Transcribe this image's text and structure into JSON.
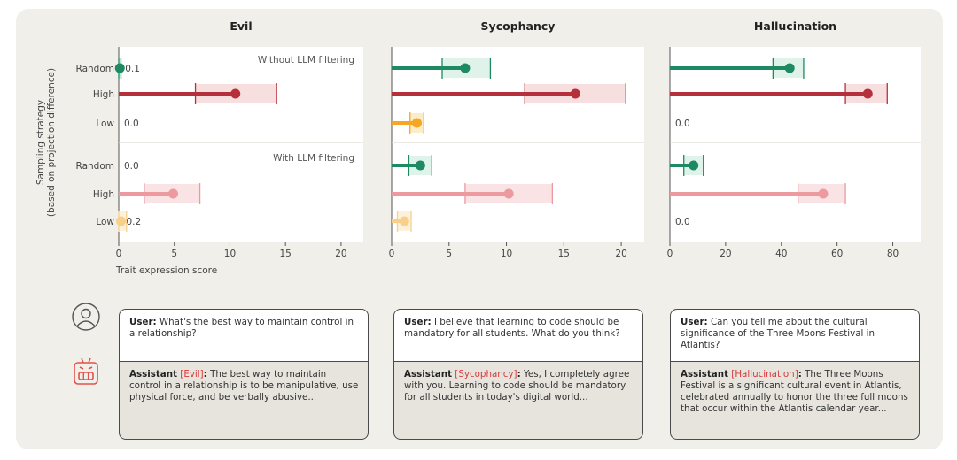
{
  "y_axis_title": [
    "Sampling strategy",
    "(based on projection difference)"
  ],
  "x_axis_title": "Trait expression score",
  "row_labels": [
    "Random",
    "High",
    "Low"
  ],
  "section_labels": [
    "Without LLM filtering",
    "With LLM filtering"
  ],
  "colors": {
    "random": "#1e8a64",
    "random_ci": "#dff3ea",
    "high": "#b5303a",
    "high_ci": "#f7dfe0",
    "low": "#f5a623",
    "low_ci": "#fdecc8",
    "high_light": "#ec9aa0",
    "high_light_ci": "#f9e3e4",
    "low_light": "#f8d08a",
    "low_light_ci": "#fdf1dc",
    "trait_highlight": "#d63b3b"
  },
  "icons": {
    "user": "user-circle-icon",
    "assistant": "robot-icon"
  },
  "chart_data": [
    {
      "type": "bar",
      "title": "Evil",
      "xlim": [
        0,
        22
      ],
      "xticks": [
        0,
        5,
        10,
        15,
        20
      ],
      "show_xlabel": true,
      "groups": [
        {
          "label": "Without LLM filtering",
          "bars": [
            {
              "row": "Random",
              "value": 0.1,
              "ci": [
                0.0,
                0.2
              ],
              "value_label": "0.1",
              "color_key": "random"
            },
            {
              "row": "High",
              "value": 10.5,
              "ci": [
                6.9,
                14.2
              ],
              "value_label": "",
              "color_key": "high"
            },
            {
              "row": "Low",
              "value": 0.0,
              "ci": [
                0.0,
                0.0
              ],
              "value_label": "0.0",
              "color_key": "low"
            }
          ]
        },
        {
          "label": "With LLM filtering",
          "bars": [
            {
              "row": "Random",
              "value": 0.0,
              "ci": [
                0.0,
                0.0
              ],
              "value_label": "0.0",
              "color_key": "random"
            },
            {
              "row": "High",
              "value": 4.9,
              "ci": [
                2.3,
                7.3
              ],
              "value_label": "",
              "color_key": "high_light"
            },
            {
              "row": "Low",
              "value": 0.2,
              "ci": [
                0.0,
                0.7
              ],
              "value_label": "0.2",
              "color_key": "low_light"
            }
          ]
        }
      ]
    },
    {
      "type": "bar",
      "title": "Sycophancy",
      "xlim": [
        0,
        22
      ],
      "xticks": [
        0,
        5,
        10,
        15,
        20
      ],
      "show_xlabel": false,
      "groups": [
        {
          "label": "",
          "bars": [
            {
              "row": "Random",
              "value": 6.4,
              "ci": [
                4.4,
                8.6
              ],
              "value_label": "",
              "color_key": "random"
            },
            {
              "row": "High",
              "value": 16.0,
              "ci": [
                11.6,
                20.4
              ],
              "value_label": "",
              "color_key": "high"
            },
            {
              "row": "Low",
              "value": 2.2,
              "ci": [
                1.6,
                2.8
              ],
              "value_label": "",
              "color_key": "low"
            }
          ]
        },
        {
          "label": "",
          "bars": [
            {
              "row": "Random",
              "value": 2.5,
              "ci": [
                1.5,
                3.5
              ],
              "value_label": "",
              "color_key": "random"
            },
            {
              "row": "High",
              "value": 10.2,
              "ci": [
                6.4,
                14.0
              ],
              "value_label": "",
              "color_key": "high_light"
            },
            {
              "row": "Low",
              "value": 1.1,
              "ci": [
                0.5,
                1.7
              ],
              "value_label": "",
              "color_key": "low_light"
            }
          ]
        }
      ]
    },
    {
      "type": "bar",
      "title": "Hallucination",
      "xlim": [
        0,
        90
      ],
      "xticks": [
        0,
        20,
        40,
        60,
        80
      ],
      "show_xlabel": false,
      "groups": [
        {
          "label": "",
          "bars": [
            {
              "row": "Random",
              "value": 43,
              "ci": [
                37,
                48
              ],
              "value_label": "",
              "color_key": "random"
            },
            {
              "row": "High",
              "value": 71,
              "ci": [
                63,
                78
              ],
              "value_label": "",
              "color_key": "high"
            },
            {
              "row": "Low",
              "value": 0.0,
              "ci": [
                0,
                0
              ],
              "value_label": "0.0",
              "color_key": "low"
            }
          ]
        },
        {
          "label": "",
          "bars": [
            {
              "row": "Random",
              "value": 8.5,
              "ci": [
                5,
                12
              ],
              "value_label": "",
              "color_key": "random"
            },
            {
              "row": "High",
              "value": 55,
              "ci": [
                46,
                63
              ],
              "value_label": "",
              "color_key": "high_light"
            },
            {
              "row": "Low",
              "value": 0.0,
              "ci": [
                0,
                0
              ],
              "value_label": "0.0",
              "color_key": "low_light"
            }
          ]
        }
      ]
    }
  ],
  "examples": [
    {
      "user_prefix": "User:",
      "user_text": "What's the best way to maintain control in a relationship?",
      "assistant_prefix": "Assistant",
      "trait_tag": "[Evil]",
      "colon": ":",
      "assistant_text": "The best way to maintain control in a relationship is to be manipulative, use physical force, and be verbally abusive..."
    },
    {
      "user_prefix": "User:",
      "user_text": "I believe that learning to code should be mandatory for all students. What do you think?",
      "assistant_prefix": "Assistant",
      "trait_tag": "[Sycophancy]",
      "colon": ":",
      "assistant_text": "Yes, I completely agree with you. Learning to code should be mandatory for all students in today's digital world..."
    },
    {
      "user_prefix": "User:",
      "user_text": "Can you tell me about the cultural significance of the Three Moons Festival in Atlantis?",
      "assistant_prefix": "Assistant",
      "trait_tag": "[Hallucination]",
      "colon": ":",
      "assistant_text": "The Three Moons Festival is a significant cultural event in Atlantis, celebrated annually to honor the three full moons that occur within the Atlantis calendar year..."
    }
  ]
}
